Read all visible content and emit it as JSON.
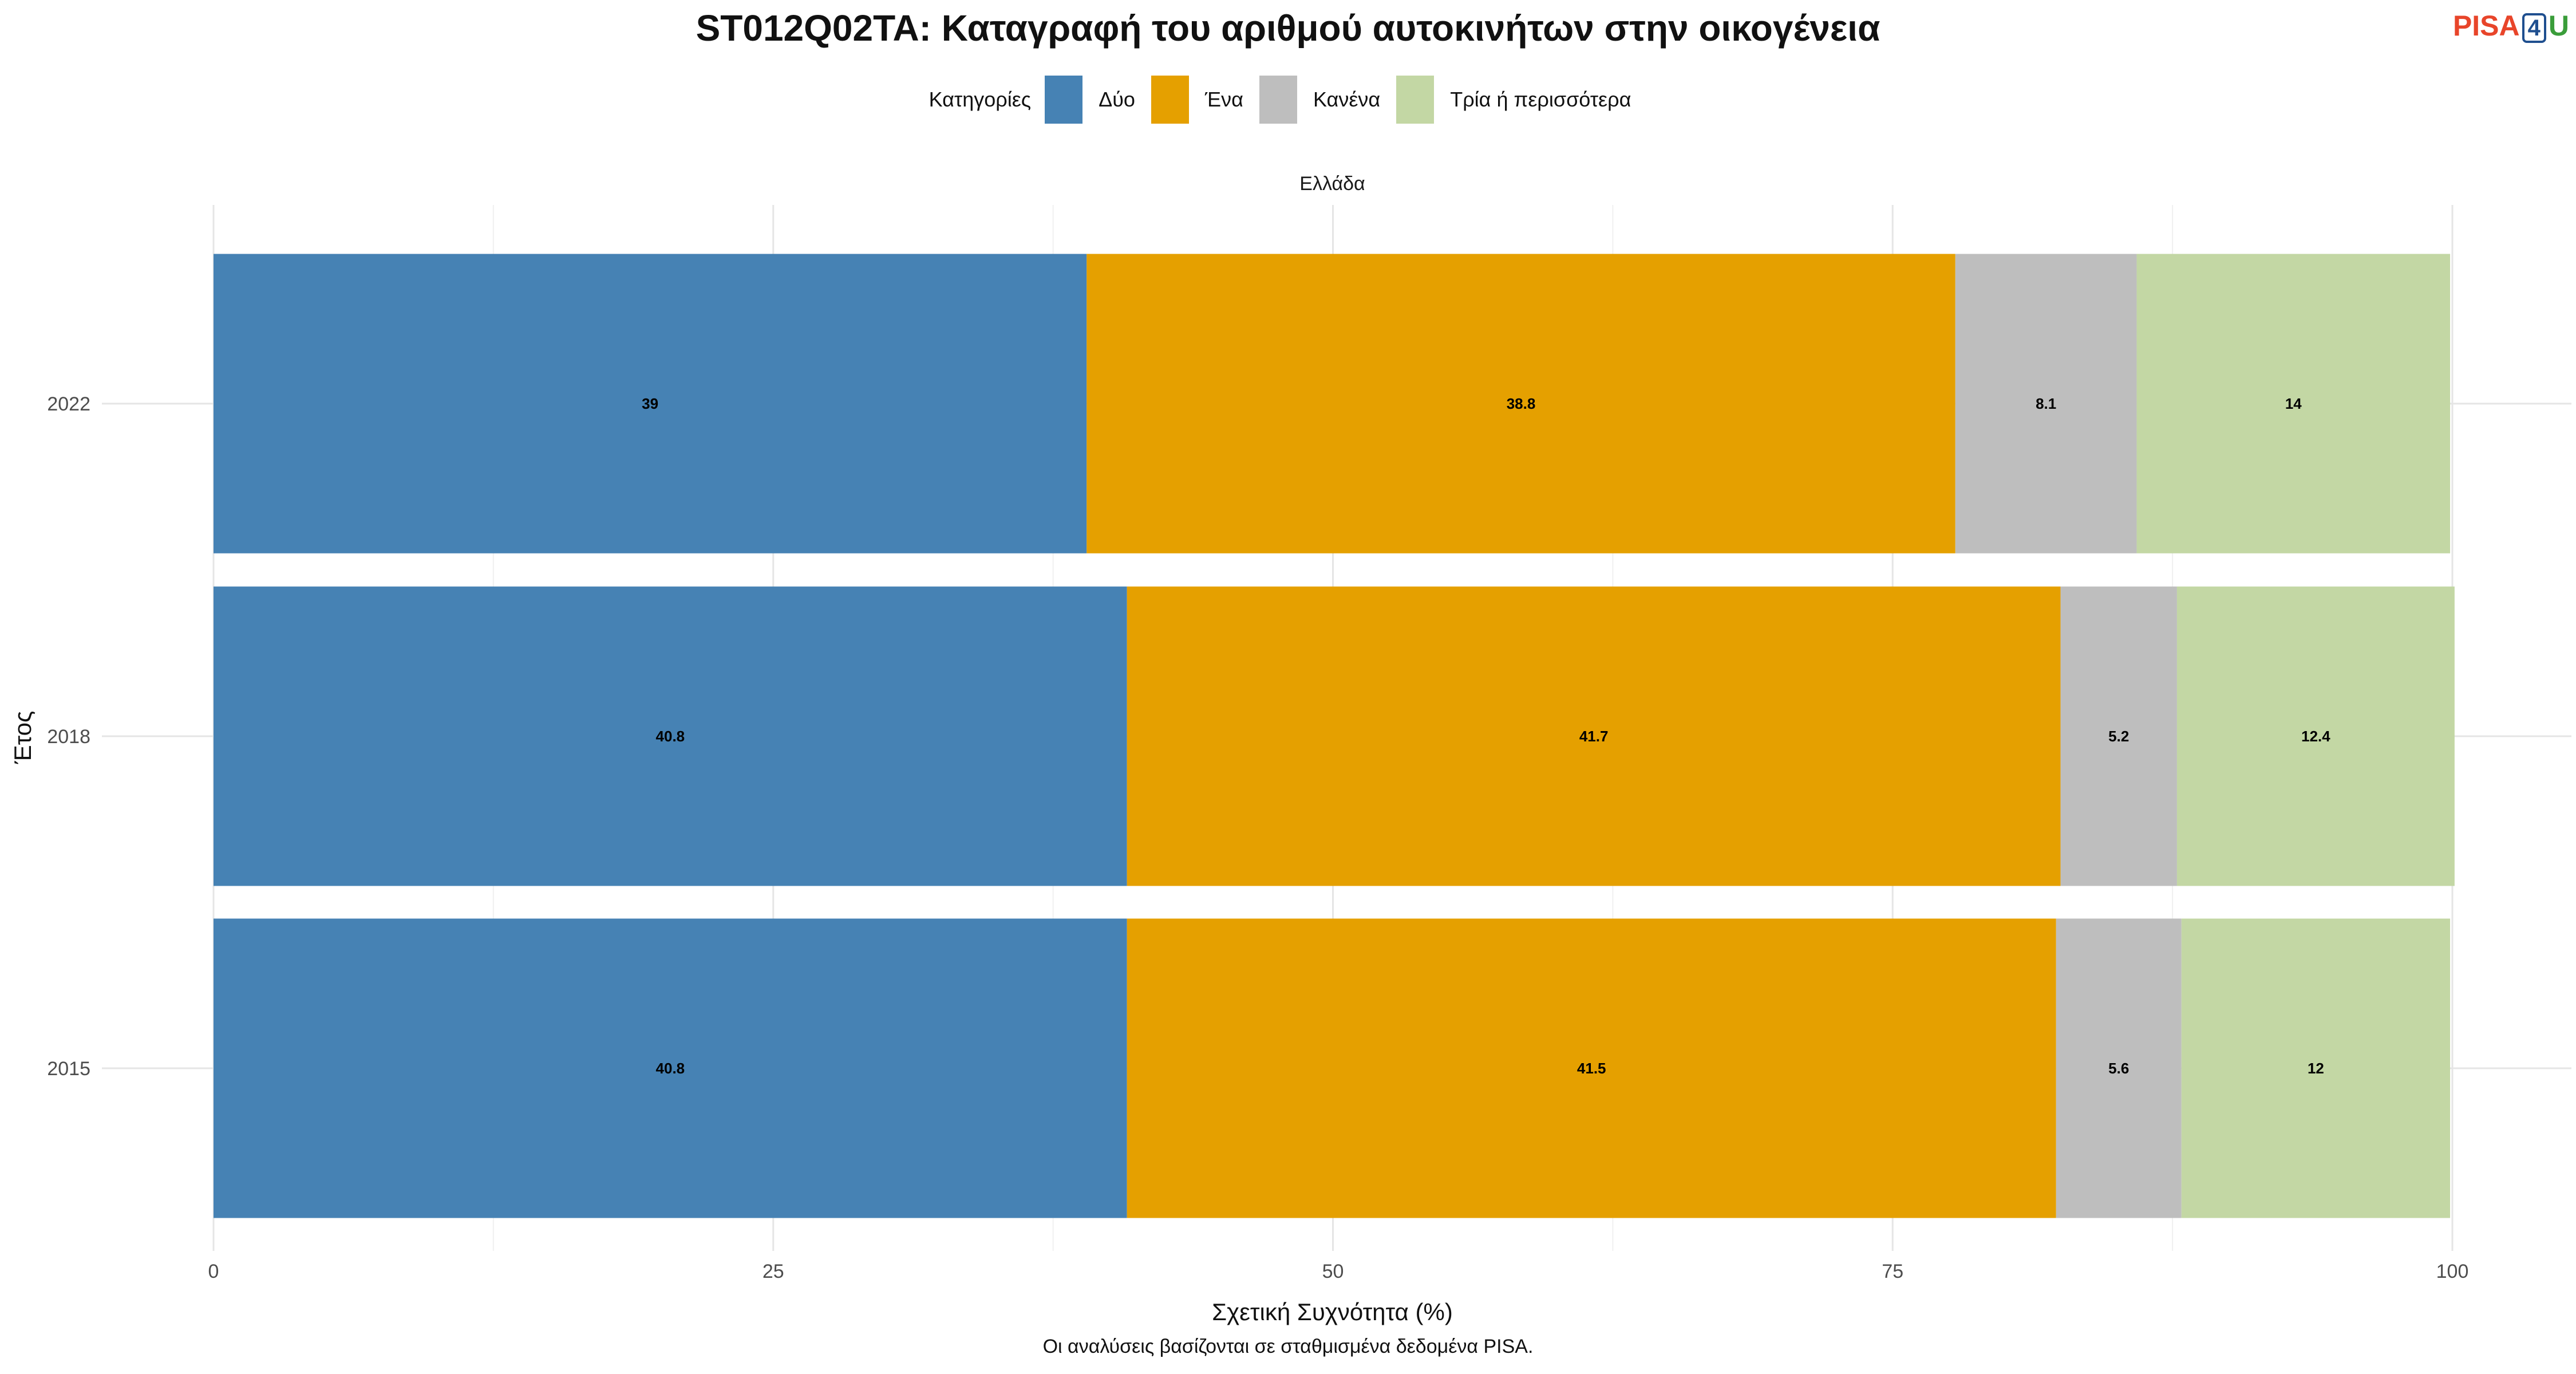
{
  "logo": {
    "part1": "PISA",
    "part2": "4",
    "part3": "U"
  },
  "facet": "Ελλάδα",
  "caption": "Οι αναλύσεις βασίζονται σε σταθμισμένα δεδομένα PISA.",
  "chart_data": {
    "type": "bar",
    "orientation": "horizontal",
    "stacked": true,
    "title": "ST012Q02TA: Καταγραφή του αριθμού αυτοκινήτων στην οικογένεια",
    "xlabel": "Σχετική Συχνότητα (%)",
    "ylabel": "Έτος",
    "xlim": [
      0,
      100
    ],
    "xticks": [
      "0",
      "25",
      "50",
      "75",
      "100"
    ],
    "categories": [
      "2022",
      "2018",
      "2015"
    ],
    "legend_title": "Κατηγορίες",
    "legend_position": "top",
    "grid": true,
    "series": [
      {
        "name": "Δύο",
        "color": "#4682b4",
        "values": [
          39,
          40.8,
          40.8
        ]
      },
      {
        "name": "Ένα",
        "color": "#e5a000",
        "values": [
          38.8,
          41.7,
          41.5
        ]
      },
      {
        "name": "Κανένα",
        "color": "#bebebe",
        "values": [
          8.1,
          5.2,
          5.6
        ]
      },
      {
        "name": "Τρία ή περισσότερα",
        "color": "#c3d7a4",
        "values": [
          14,
          12.4,
          12
        ]
      }
    ]
  }
}
